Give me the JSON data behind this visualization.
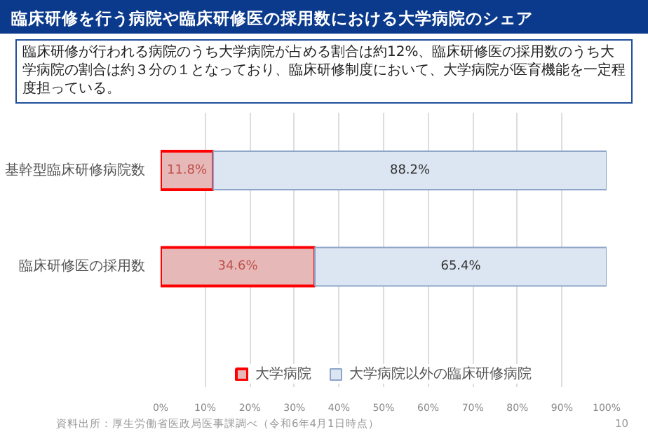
{
  "chart_data": {
    "type": "bar",
    "orientation": "horizontal",
    "stacked": true,
    "title": "臨床研修を行う病院や臨床研修医の採用数における大学病院のシェア",
    "subtitle": "臨床研修が行われる病院のうち大学病院が占める割合は約12%、臨床研修医の採用数のうち大学病院の割合は約３分の１となっており、臨床研修制度において、大学病院が医育機能を一定程度担っている。",
    "categories": [
      "基幹型臨床研修病院数",
      "臨床研修医の採用数"
    ],
    "series": [
      {
        "name": "大学病院",
        "color": "#e6b9b8",
        "values": [
          11.8,
          34.6
        ],
        "value_labels": [
          "11.8%",
          "34.6%"
        ]
      },
      {
        "name": "大学病院以外の臨床研修病院",
        "color": "#dce6f2",
        "values": [
          88.2,
          65.4
        ],
        "value_labels": [
          "88.2%",
          "65.4%"
        ]
      }
    ],
    "xlim": [
      0,
      100
    ],
    "xticks": [
      {
        "value": 0,
        "label": "0%"
      },
      {
        "value": 10,
        "label": "10%"
      },
      {
        "value": 20,
        "label": "20%"
      },
      {
        "value": 30,
        "label": "30%"
      },
      {
        "value": 40,
        "label": "40%"
      },
      {
        "value": 50,
        "label": "50%"
      },
      {
        "value": 60,
        "label": "60%"
      },
      {
        "value": 70,
        "label": "70%"
      },
      {
        "value": 80,
        "label": "80%"
      },
      {
        "value": 90,
        "label": "90%"
      },
      {
        "value": 100,
        "label": "100%"
      }
    ],
    "grid": "x",
    "legend": "bottom",
    "annotations": [
      "資料出所：厚生労働省医政局医事課調べ（令和6年4月1日時点）",
      "10"
    ]
  }
}
